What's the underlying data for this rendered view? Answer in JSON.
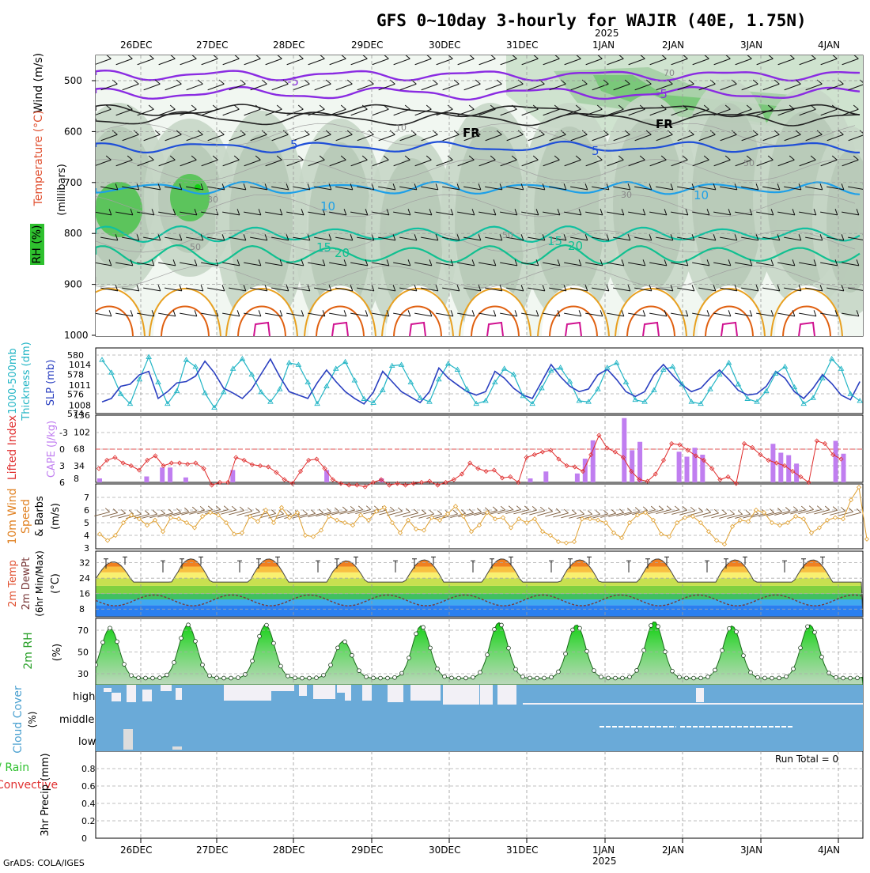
{
  "title": "GFS 0~10day 3-hourly for WAJIR (40E, 1.75N)",
  "credit": "GrADS: COLA/IGES",
  "time_axis": {
    "labels": [
      "26DEC",
      "27DEC",
      "28DEC",
      "29DEC",
      "30DEC",
      "31DEC",
      "1JAN",
      "2JAN",
      "3JAN",
      "4JAN"
    ],
    "year_label": "2025"
  },
  "chart_data": [
    {
      "id": "upper-air",
      "type": "heatmap",
      "ylabel": "(millibars)",
      "legend_labels": [
        "Wind (m/s)",
        "Temperature (°C)",
        "RH (%)"
      ],
      "pressure_ticks": [
        "500",
        "600",
        "700",
        "800",
        "900",
        "1000"
      ],
      "contour_labels": [
        "-5",
        "5",
        "10",
        "15",
        "20",
        "FR",
        "30",
        "50",
        "70"
      ]
    },
    {
      "id": "thickness-slp",
      "type": "line",
      "ylabel_left": "1000-500mb Thickness (dm)",
      "ylabel_right": "SLP (mb)",
      "left_ticks": [
        "580",
        "578",
        "576",
        "574"
      ],
      "right_ticks": [
        "1014",
        "1011",
        "1008"
      ],
      "series": [
        {
          "name": "Thickness",
          "values": [
            579.5,
            578.2,
            576.0,
            575.0,
            577.5,
            579.8,
            577.2,
            575.0,
            576.3,
            579.5,
            578.8,
            576.1,
            574.6,
            576.2,
            578.6,
            579.6,
            578.0,
            576.2,
            575.2,
            576.5,
            579.2,
            579.0,
            577.2,
            575.0,
            576.8,
            578.6,
            579.3,
            577.4,
            575.5,
            575.1,
            576.4,
            578.9,
            579.0,
            577.2,
            575.6,
            575.2,
            577.5,
            579.1,
            578.5,
            576.5,
            575.0,
            575.3,
            577.2,
            578.6,
            578.0,
            575.8,
            575.0,
            576.6,
            578.4,
            578.7,
            577.3,
            575.3,
            575.2,
            576.5,
            578.7,
            579.2,
            577.2,
            575.4,
            575.2,
            576.4,
            578.5,
            578.8,
            577.0,
            575.2,
            575.0,
            576.5,
            578.0,
            579.2,
            577.0,
            575.5,
            575.2,
            576.3,
            578.1,
            578.8,
            576.7,
            575.0,
            575.6,
            577.6,
            579.6,
            578.6,
            576.0,
            575.3
          ]
        },
        {
          "name": "SLP",
          "values": [
            1008.5,
            1009.0,
            1010.8,
            1011.1,
            1012.5,
            1013.0,
            1009.0,
            1010.0,
            1011.3,
            1011.5,
            1012.3,
            1014.5,
            1012.8,
            1010.5,
            1009.8,
            1009.0,
            1010.4,
            1012.6,
            1014.8,
            1012.2,
            1010.0,
            1009.5,
            1009.0,
            1011.3,
            1013.2,
            1011.5,
            1010.0,
            1009.0,
            1008.2,
            1009.9,
            1013.0,
            1011.5,
            1010.0,
            1009.2,
            1008.4,
            1010.0,
            1013.5,
            1012.0,
            1011.0,
            1010.0,
            1009.5,
            1010.0,
            1013.0,
            1012.0,
            1010.5,
            1009.5,
            1009.0,
            1011.5,
            1014.0,
            1012.2,
            1010.8,
            1010.0,
            1010.4,
            1012.5,
            1013.3,
            1011.8,
            1010.0,
            1009.3,
            1010.0,
            1012.5,
            1014.0,
            1012.4,
            1011.0,
            1010.0,
            1010.5,
            1012.0,
            1013.2,
            1011.8,
            1010.2,
            1009.5,
            1009.7,
            1010.8,
            1013.0,
            1012.0,
            1010.0,
            1009.0,
            1010.5,
            1012.5,
            1011.2,
            1009.5,
            1008.8,
            1011.5
          ]
        }
      ]
    },
    {
      "id": "lifted-cape",
      "type": "bar",
      "ylabel_left": "Lifted Index",
      "ylabel_right": "CAPE (J/kg)",
      "left_ticks": [
        "-3",
        "0",
        "3",
        "6"
      ],
      "right_ticks": [
        "136",
        "102",
        "68",
        "34",
        "8"
      ],
      "cape_bars": [
        [
          0,
          8
        ],
        [
          6,
          12
        ],
        [
          8,
          30
        ],
        [
          9,
          30
        ],
        [
          11,
          10
        ],
        [
          17,
          25
        ],
        [
          29,
          25
        ],
        [
          36,
          8
        ],
        [
          55,
          8
        ],
        [
          57,
          22
        ],
        [
          61,
          18
        ],
        [
          62,
          48
        ],
        [
          63,
          85
        ],
        [
          67,
          130
        ],
        [
          68,
          65
        ],
        [
          69,
          82
        ],
        [
          74,
          62
        ],
        [
          75,
          52
        ],
        [
          76,
          70
        ],
        [
          77,
          56
        ],
        [
          86,
          78
        ],
        [
          87,
          60
        ],
        [
          88,
          55
        ],
        [
          89,
          38
        ],
        [
          94,
          84
        ],
        [
          95,
          58
        ]
      ],
      "lifted_index": [
        3.5,
        2.0,
        1.5,
        2.5,
        3.0,
        3.8,
        2.0,
        1.2,
        3.0,
        2.5,
        2.5,
        2.7,
        2.5,
        3.5,
        6.5,
        6.0,
        6.0,
        1.5,
        2.0,
        2.8,
        3.0,
        3.2,
        4.2,
        5.5,
        6.2,
        4.0,
        2.0,
        1.8,
        3.5,
        5.5,
        6.2,
        6.5,
        6.5,
        6.8,
        6.0,
        5.5,
        6.5,
        6.2,
        6.5,
        6.2,
        6.0,
        5.8,
        6.5,
        6.0,
        5.5,
        4.5,
        2.5,
        3.5,
        4.0,
        3.8,
        5.2,
        5.0,
        6.0,
        1.5,
        1.0,
        0.5,
        0.2,
        1.8,
        3.0,
        3.2,
        4.0,
        1.0,
        -2.5,
        -0.2,
        0.5,
        1.5,
        4.0,
        5.5,
        5.8,
        4.5,
        2.0,
        -1.0,
        -0.8,
        0.2,
        1.2,
        2.0,
        3.5,
        5.5,
        5.0,
        6.2,
        -1.0,
        -0.3,
        1.0,
        2.0,
        2.5,
        3.0,
        4.0,
        5.0,
        6.0,
        -1.5,
        -1.0,
        1.0,
        1.8
      ]
    },
    {
      "id": "wind-10m",
      "type": "line",
      "ylabel": "10m Wind Speed & Barbs (m/s)",
      "ticks": [
        "7",
        "6",
        "5",
        "4",
        "3"
      ],
      "values": [
        4.1,
        3.6,
        4.0,
        5.0,
        5.6,
        5.3,
        4.8,
        5.2,
        4.3,
        5.4,
        5.3,
        5.0,
        4.6,
        5.5,
        5.8,
        5.6,
        5.0,
        4.1,
        4.2,
        5.5,
        5.1,
        6.0,
        5.0,
        6.2,
        5.4,
        5.8,
        4.0,
        3.9,
        4.4,
        5.5,
        5.2,
        5.0,
        4.8,
        5.6,
        5.2,
        5.9,
        6.2,
        5.0,
        4.2,
        5.2,
        4.5,
        4.4,
        5.4,
        5.2,
        5.7,
        6.3,
        5.5,
        4.3,
        4.8,
        5.8,
        5.3,
        5.4,
        4.6,
        5.3,
        5.0,
        5.3,
        4.3,
        4.0,
        3.5,
        3.4,
        3.5,
        5.3,
        5.3,
        5.2,
        5.0,
        4.2,
        3.8,
        5.0,
        5.6,
        5.8,
        5.2,
        4.1,
        3.9,
        5.0,
        5.4,
        5.5,
        5.0,
        4.3,
        3.6,
        3.3,
        4.7,
        5.2,
        5.1,
        6.0,
        5.8,
        5.0,
        4.8,
        5.0,
        5.5,
        5.3,
        4.2,
        4.6,
        5.2,
        5.4,
        5.3,
        6.8,
        7.8,
        3.7
      ]
    },
    {
      "id": "temp-2m",
      "type": "area",
      "ylabel": "2m Temp 2m DewPt (6hr Min/Max) (°C)",
      "ticks": [
        "32",
        "24",
        "16",
        "8"
      ],
      "temp_peaks": [
        32.5,
        34,
        34,
        33,
        33.5,
        34,
        33.5,
        34,
        33.5
      ],
      "dewpoint_note": "dotted line 10-15 °C"
    },
    {
      "id": "rh-2m",
      "type": "area",
      "ylabel": "2m RH (%)",
      "ticks": [
        "70",
        "50",
        "30"
      ],
      "rh_peaks": [
        72,
        75,
        75,
        60,
        74,
        77,
        75,
        78,
        74,
        75
      ],
      "rh_min": 25
    },
    {
      "id": "cloud-cover",
      "type": "bar",
      "ylabel": "Cloud Cover (%)",
      "levels": [
        "high",
        "middle",
        "low"
      ]
    },
    {
      "id": "precip",
      "type": "bar",
      "ylabel": "3hr Precip (mm)",
      "legend_labels": [
        "Total / Rain",
        "Convective"
      ],
      "ticks": [
        "0.8",
        "0.6",
        "0.4",
        "0.2",
        "0"
      ],
      "ylim": [
        0,
        1
      ],
      "run_total_label": "Run Total = 0",
      "values": []
    }
  ],
  "colors": {
    "thickness": "#22b5c5",
    "slp": "#2a3fc0",
    "cape": "#c07ef0",
    "lifted": "#e03030",
    "wind": "#e0a030",
    "rh_text": "#2aa02a",
    "cloud": "#6aaad8"
  }
}
